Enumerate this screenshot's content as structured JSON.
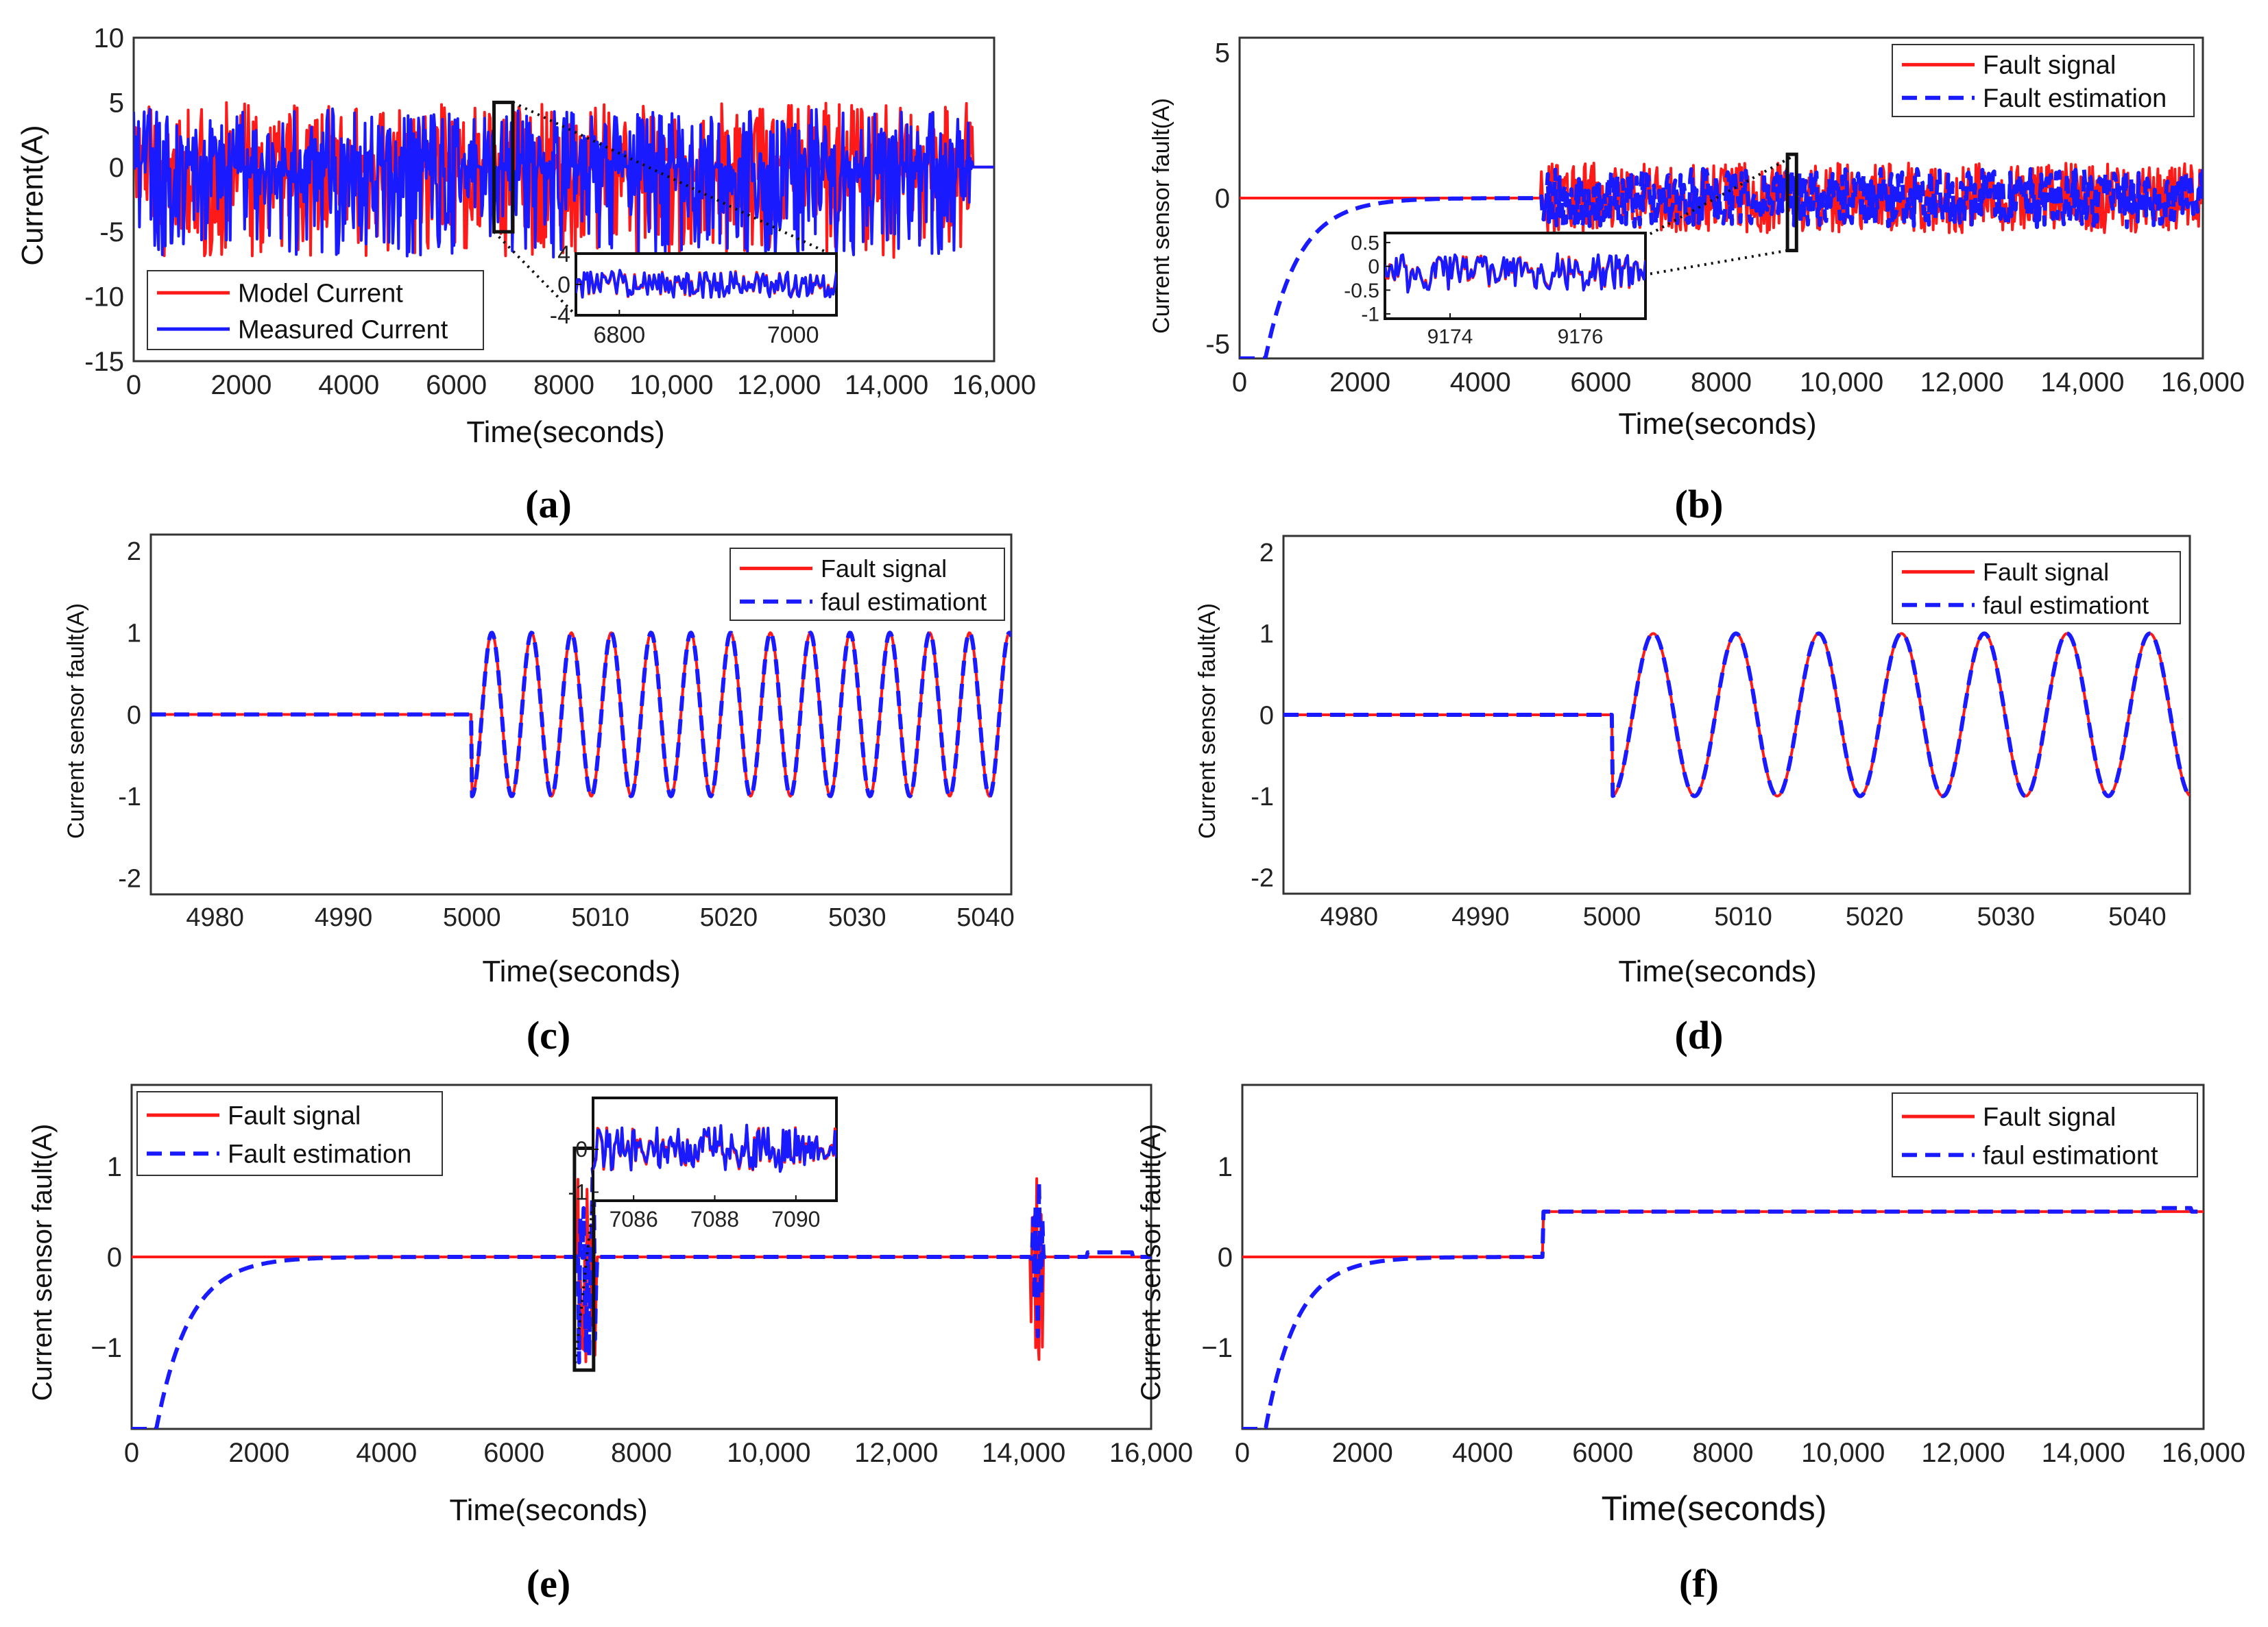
{
  "figure": {
    "colors": {
      "red": "#ff1a1a",
      "blue": "#1a1aff",
      "axis": "#333333",
      "text": "#222222"
    }
  },
  "chart_data": [
    {
      "id": "a",
      "type": "line",
      "caption": "(a)",
      "xlabel": "Time(seconds)",
      "ylabel": "Current(A)",
      "xlim": [
        0,
        16000
      ],
      "ylim": [
        -15,
        10
      ],
      "xticks": [
        "0",
        "2000",
        "4000",
        "6000",
        "8000",
        "10,000",
        "12,000",
        "14,000",
        "16,000"
      ],
      "yticks": [
        "10",
        "5",
        "0",
        "-5",
        "-10",
        "-15"
      ],
      "legend": {
        "position": "bottom-left",
        "items": [
          "Model Current",
          "Measured Current"
        ]
      },
      "series": [
        {
          "name": "Model Current",
          "color": "#ff1a1a",
          "style": "solid",
          "kind": "noise",
          "start": 0,
          "end": 15600,
          "amplitude": [
            -7,
            5
          ],
          "after": 0
        },
        {
          "name": "Measured Current",
          "color": "#1a1aff",
          "style": "solid",
          "kind": "noise",
          "start": 0,
          "end": 15600,
          "amplitude": [
            -7,
            4.5
          ],
          "after": 0
        }
      ],
      "zoom_box": {
        "x": [
          6700,
          7050
        ],
        "y": [
          -5,
          5
        ]
      },
      "inset": {
        "xlim": [
          6750,
          7050
        ],
        "ylim": [
          -4,
          4
        ],
        "xticks": [
          "6800",
          "7000"
        ],
        "yticks": [
          "4",
          "0",
          "-4"
        ]
      }
    },
    {
      "id": "b",
      "type": "line",
      "caption": "(b)",
      "xlabel": "Time(seconds)",
      "ylabel": "Current sensor fault(A)",
      "xlim": [
        0,
        16000
      ],
      "ylim": [
        -5.5,
        5.5
      ],
      "xticks": [
        "0",
        "2000",
        "4000",
        "6000",
        "8000",
        "10,000",
        "12,000",
        "14,000",
        "16,000"
      ],
      "yticks": [
        "5",
        "0",
        "-5"
      ],
      "legend": {
        "position": "top-right",
        "items": [
          "Fault signal",
          "Fault estimation"
        ]
      },
      "series": [
        {
          "name": "Fault signal",
          "color": "#ff1a1a",
          "style": "solid",
          "kind": "noise_after",
          "start": 5000,
          "end": 16000,
          "amplitude": [
            -1.2,
            1.2
          ]
        },
        {
          "name": "Fault estimation",
          "color": "#1a1aff",
          "style": "dashed",
          "kind": "exp_then_noise",
          "start": 5000,
          "end": 16000,
          "amplitude": [
            -1,
            1
          ],
          "initial": -12
        }
      ],
      "zoom_box": {
        "x": [
          9100,
          9250
        ],
        "y": [
          -1.8,
          1.5
        ]
      },
      "inset": {
        "xlim": [
          9173,
          9177
        ],
        "ylim": [
          -1.1,
          0.7
        ],
        "xticks": [
          "9174",
          "9176"
        ],
        "yticks": [
          "0.5",
          "0",
          "-0.5",
          "-1"
        ]
      }
    },
    {
      "id": "c",
      "type": "line",
      "caption": "(c)",
      "xlabel": "Time(seconds)",
      "ylabel": "Current sensor fault(A)",
      "xlim": [
        4975,
        5042
      ],
      "ylim": [
        -2.2,
        2.2
      ],
      "xticks": [
        "4980",
        "4990",
        "5000",
        "5010",
        "5020",
        "5030",
        "5040"
      ],
      "yticks": [
        "2",
        "1",
        "0",
        "-1",
        "-2"
      ],
      "legend": {
        "position": "top-right",
        "items": [
          "Fault signal",
          "faul estimationt"
        ]
      },
      "series": [
        {
          "name": "Fault signal",
          "color": "#ff1a1a",
          "style": "solid",
          "kind": "sine_after",
          "start": 5000,
          "period": 3.1
        },
        {
          "name": "faul estimationt",
          "color": "#1a1aff",
          "style": "dashed",
          "kind": "sine_after",
          "start": 5000,
          "period": 3.1
        }
      ]
    },
    {
      "id": "d",
      "type": "line",
      "caption": "(d)",
      "xlabel": "Time(seconds)",
      "ylabel": "Current sensor fault(A)",
      "xlim": [
        4975,
        5044
      ],
      "ylim": [
        -2.2,
        2.2
      ],
      "xticks": [
        "4980",
        "4990",
        "5000",
        "5010",
        "5020",
        "5030",
        "5040"
      ],
      "yticks": [
        "2",
        "1",
        "0",
        "-1",
        "-2"
      ],
      "legend": {
        "position": "top-right",
        "items": [
          "Fault signal",
          "faul estimationt"
        ]
      },
      "series": [
        {
          "name": "Fault signal",
          "color": "#ff1a1a",
          "style": "solid",
          "kind": "sine_after",
          "start": 5000,
          "period": 6.3
        },
        {
          "name": "faul estimationt",
          "color": "#1a1aff",
          "style": "dashed",
          "kind": "sine_after",
          "start": 5000,
          "period": 6.3
        }
      ]
    },
    {
      "id": "e",
      "type": "line",
      "caption": "(e)",
      "xlabel": "Time(seconds)",
      "ylabel": "Current sensor fault(A)",
      "xlim": [
        0,
        16000
      ],
      "ylim": [
        -1.9,
        1.9
      ],
      "xticks": [
        "0",
        "2000",
        "4000",
        "6000",
        "8000",
        "10,000",
        "12,000",
        "14,000",
        "16,000"
      ],
      "yticks": [
        "1",
        "0",
        "−1"
      ],
      "legend": {
        "position": "top-left",
        "items": [
          "Fault signal",
          "Fault estimation"
        ]
      },
      "series": [
        {
          "name": "Fault signal",
          "color": "#ff1a1a",
          "style": "solid",
          "kind": "bursts",
          "bursts": [
            [
              7000,
              7300
            ],
            [
              14100,
              14300
            ]
          ],
          "amplitude": [
            -1.25,
            1.05
          ]
        },
        {
          "name": "Fault estimation",
          "color": "#1a1aff",
          "style": "dashed",
          "kind": "exp_then_bursts",
          "bursts": [
            [
              7000,
              7300
            ],
            [
              14100,
              14300
            ]
          ],
          "amplitude": [
            -1.2,
            1.0
          ],
          "initial": -4
        }
      ],
      "zoom_box": {
        "x": [
          6950,
          7250
        ],
        "y": [
          -1.25,
          1.2
        ]
      },
      "inset": {
        "xlim": [
          7085,
          7091
        ],
        "ylim": [
          -1.2,
          1.2
        ],
        "xticks": [
          "7086",
          "7088",
          "7090"
        ],
        "yticks": [
          "0",
          "-1"
        ]
      }
    },
    {
      "id": "f",
      "type": "line",
      "caption": "(f)",
      "xlabel": "Time(seconds)",
      "ylabel": "Current sensor fault(A)",
      "xlim": [
        0,
        16000
      ],
      "ylim": [
        -1.9,
        1.9
      ],
      "xticks": [
        "0",
        "2000",
        "4000",
        "6000",
        "8000",
        "10,000",
        "12,000",
        "14,000",
        "16,000"
      ],
      "yticks": [
        "1",
        "0",
        "−1"
      ],
      "legend": {
        "position": "top-right",
        "items": [
          "Fault signal",
          "faul estimationt"
        ]
      },
      "series": [
        {
          "name": "Fault signal",
          "color": "#ff1a1a",
          "style": "solid",
          "kind": "step",
          "start": 5000,
          "level": 0.5
        },
        {
          "name": "faul estimationt",
          "color": "#1a1aff",
          "style": "dashed",
          "kind": "exp_then_step",
          "start": 5000,
          "level": 0.5,
          "initial": -4
        }
      ]
    }
  ]
}
